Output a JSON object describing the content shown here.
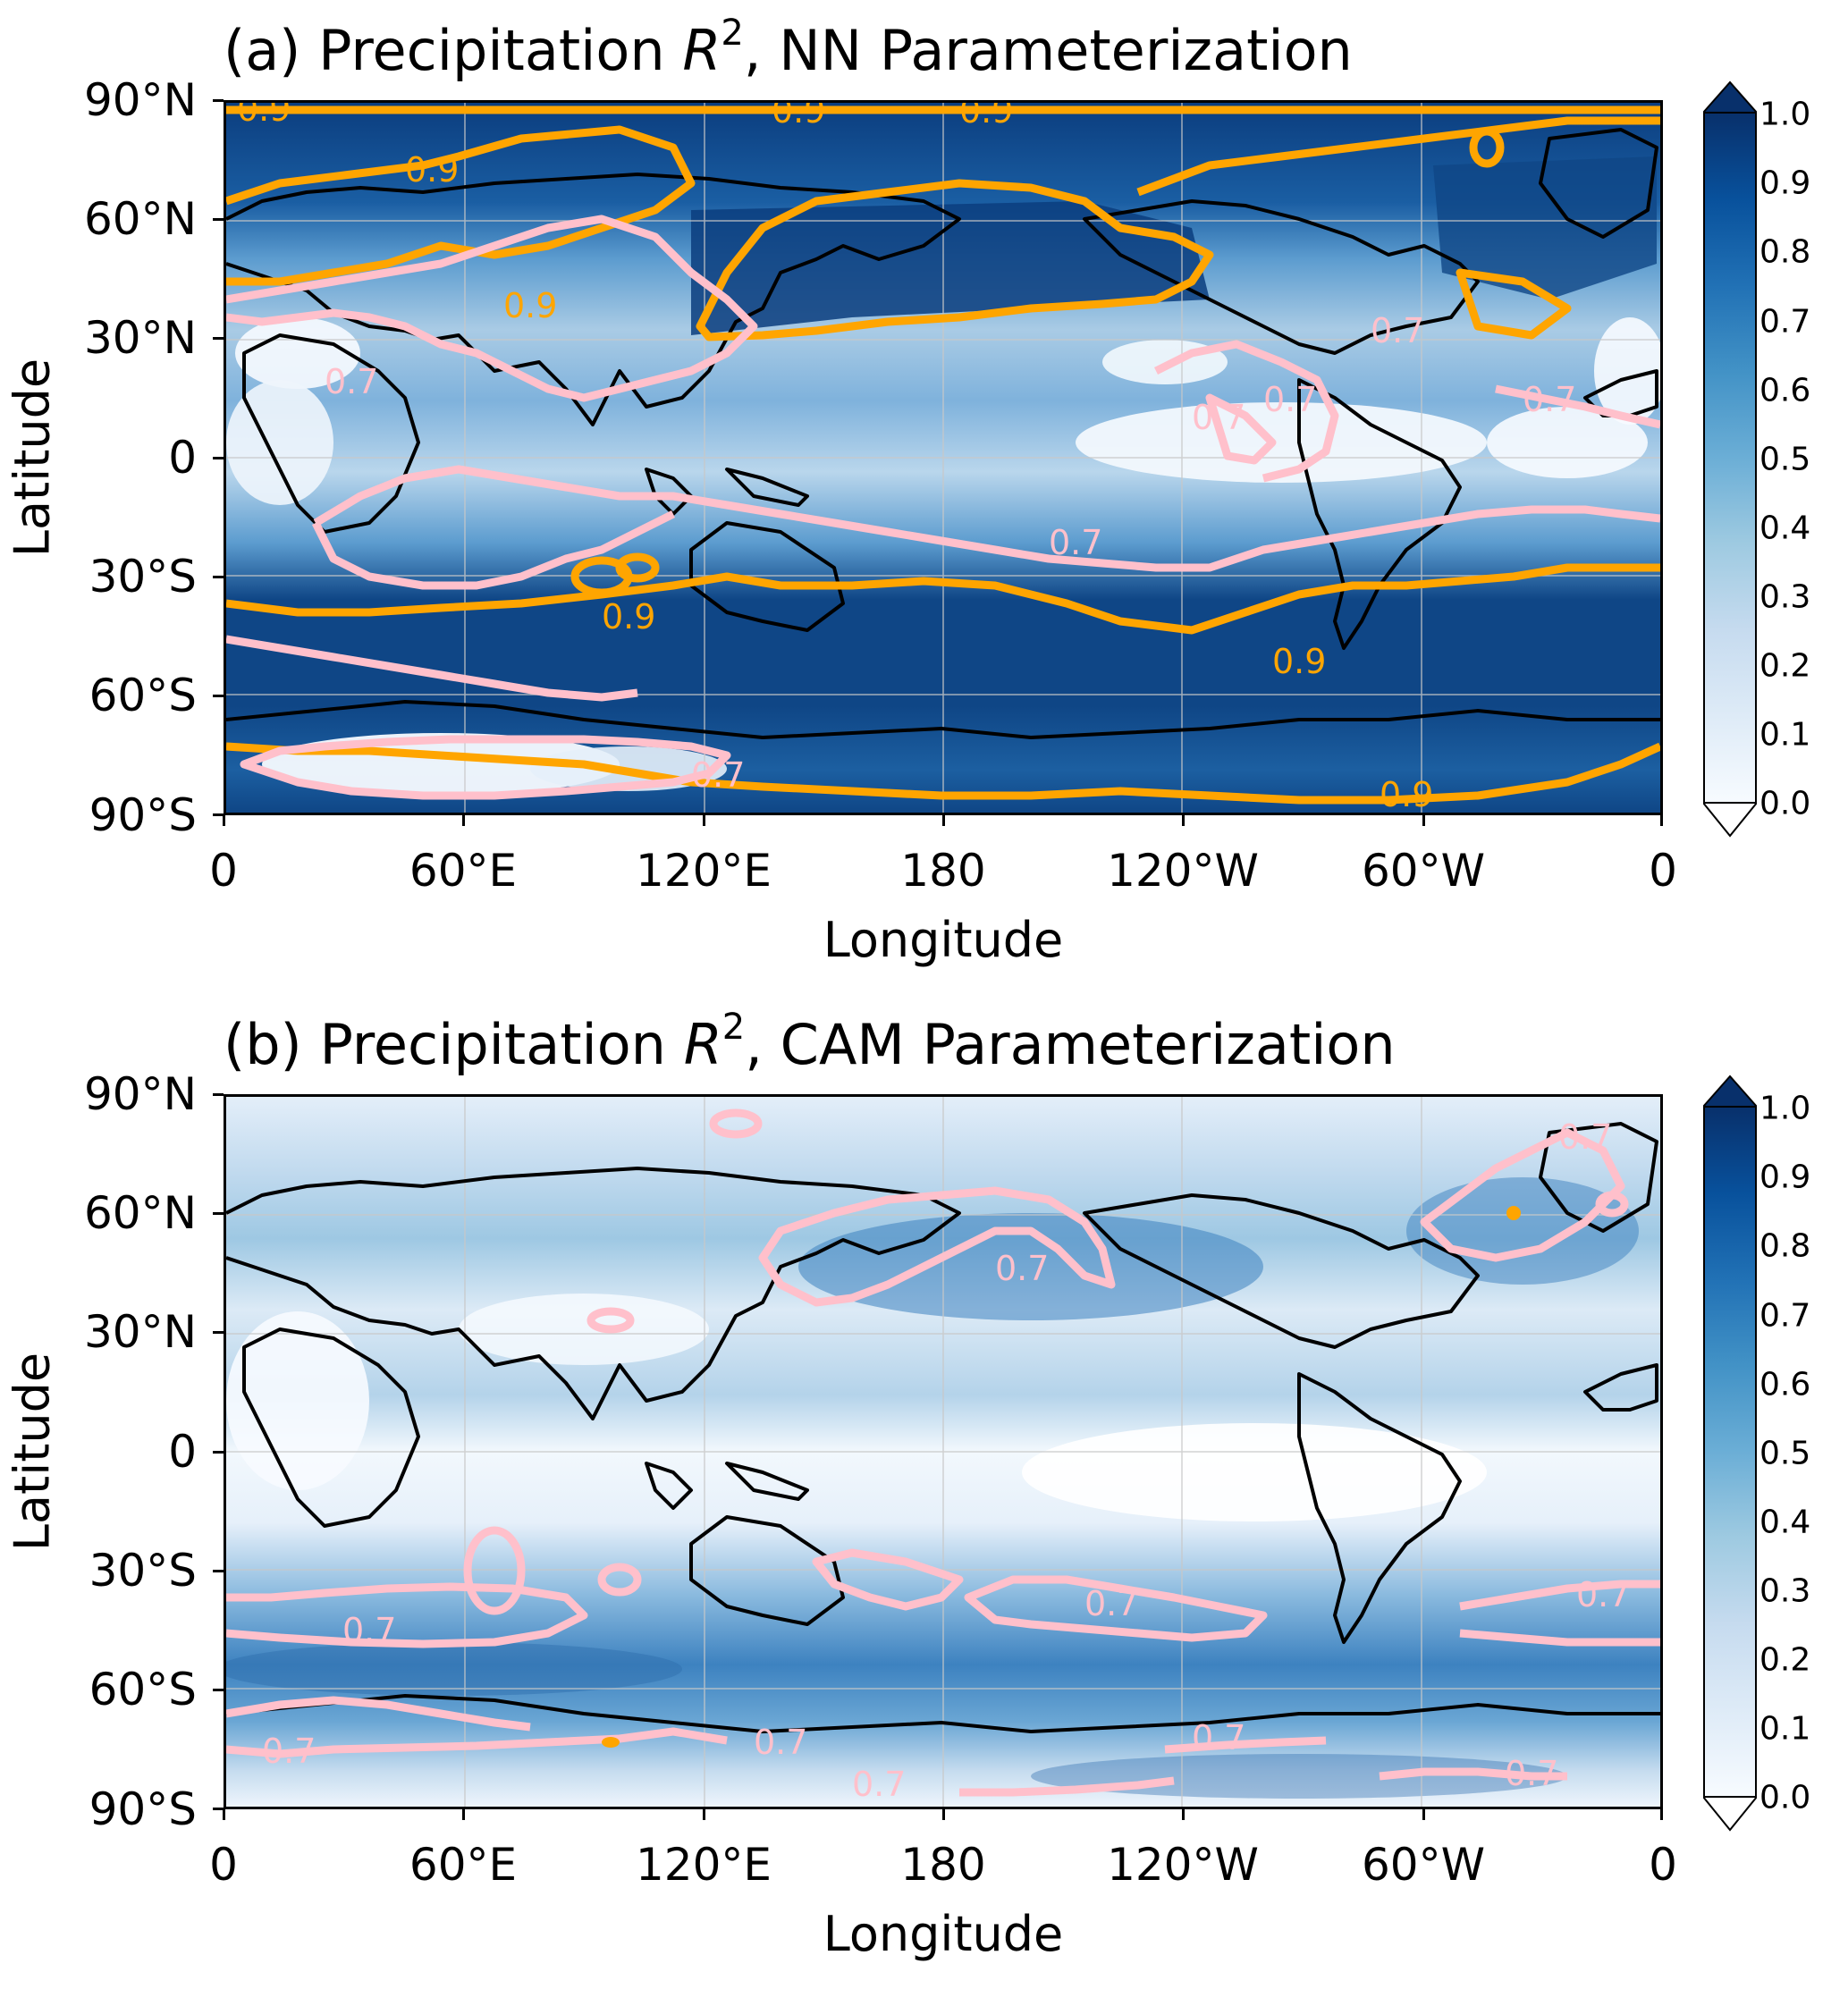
{
  "panels": [
    {
      "title_prefix": "(a) Precipitation ",
      "title_var": "R",
      "title_sup": "2",
      "title_suffix": ", NN Parameterization",
      "ylabel": "Latitude",
      "xlabel": "Longitude",
      "contour_labels": [
        "0.9",
        "0.9",
        "0.9",
        "0.9",
        "0.9",
        "0.9",
        "0.9",
        "0.9",
        "0.7",
        "0.7",
        "0.7",
        "0.7",
        "0.7",
        "0.7",
        "0.7"
      ]
    },
    {
      "title_prefix": "(b) Precipitation ",
      "title_var": "R",
      "title_sup": "2",
      "title_suffix": ", CAM Parameterization",
      "ylabel": "Latitude",
      "xlabel": "Longitude",
      "contour_labels": [
        "0.7",
        "0.7",
        "0.7",
        "0.7",
        "0.7",
        "0.7",
        "0.7",
        "0.7",
        "0.7",
        "0.7"
      ]
    }
  ],
  "lat_ticks": [
    "90°N",
    "60°N",
    "30°N",
    "0",
    "30°S",
    "60°S",
    "90°S"
  ],
  "lon_ticks": [
    "0",
    "60°E",
    "120°E",
    "180",
    "120°W",
    "60°W",
    "0"
  ],
  "colorbar": {
    "ticks": [
      "1.0",
      "0.9",
      "0.8",
      "0.7",
      "0.6",
      "0.5",
      "0.4",
      "0.3",
      "0.2",
      "0.1",
      "0.0"
    ],
    "colormap": "Blues",
    "min": 0.0,
    "max": 1.0,
    "extend": "both",
    "colors": [
      "#f7fbff",
      "#deebf7",
      "#c6dbef",
      "#9ecae1",
      "#6baed6",
      "#4292c6",
      "#2171b5",
      "#08519c",
      "#08306b"
    ]
  },
  "contour_colors": {
    "level_0_9": "#ffa500",
    "level_0_7": "#ffc0cb",
    "coastline": "#000000"
  }
}
